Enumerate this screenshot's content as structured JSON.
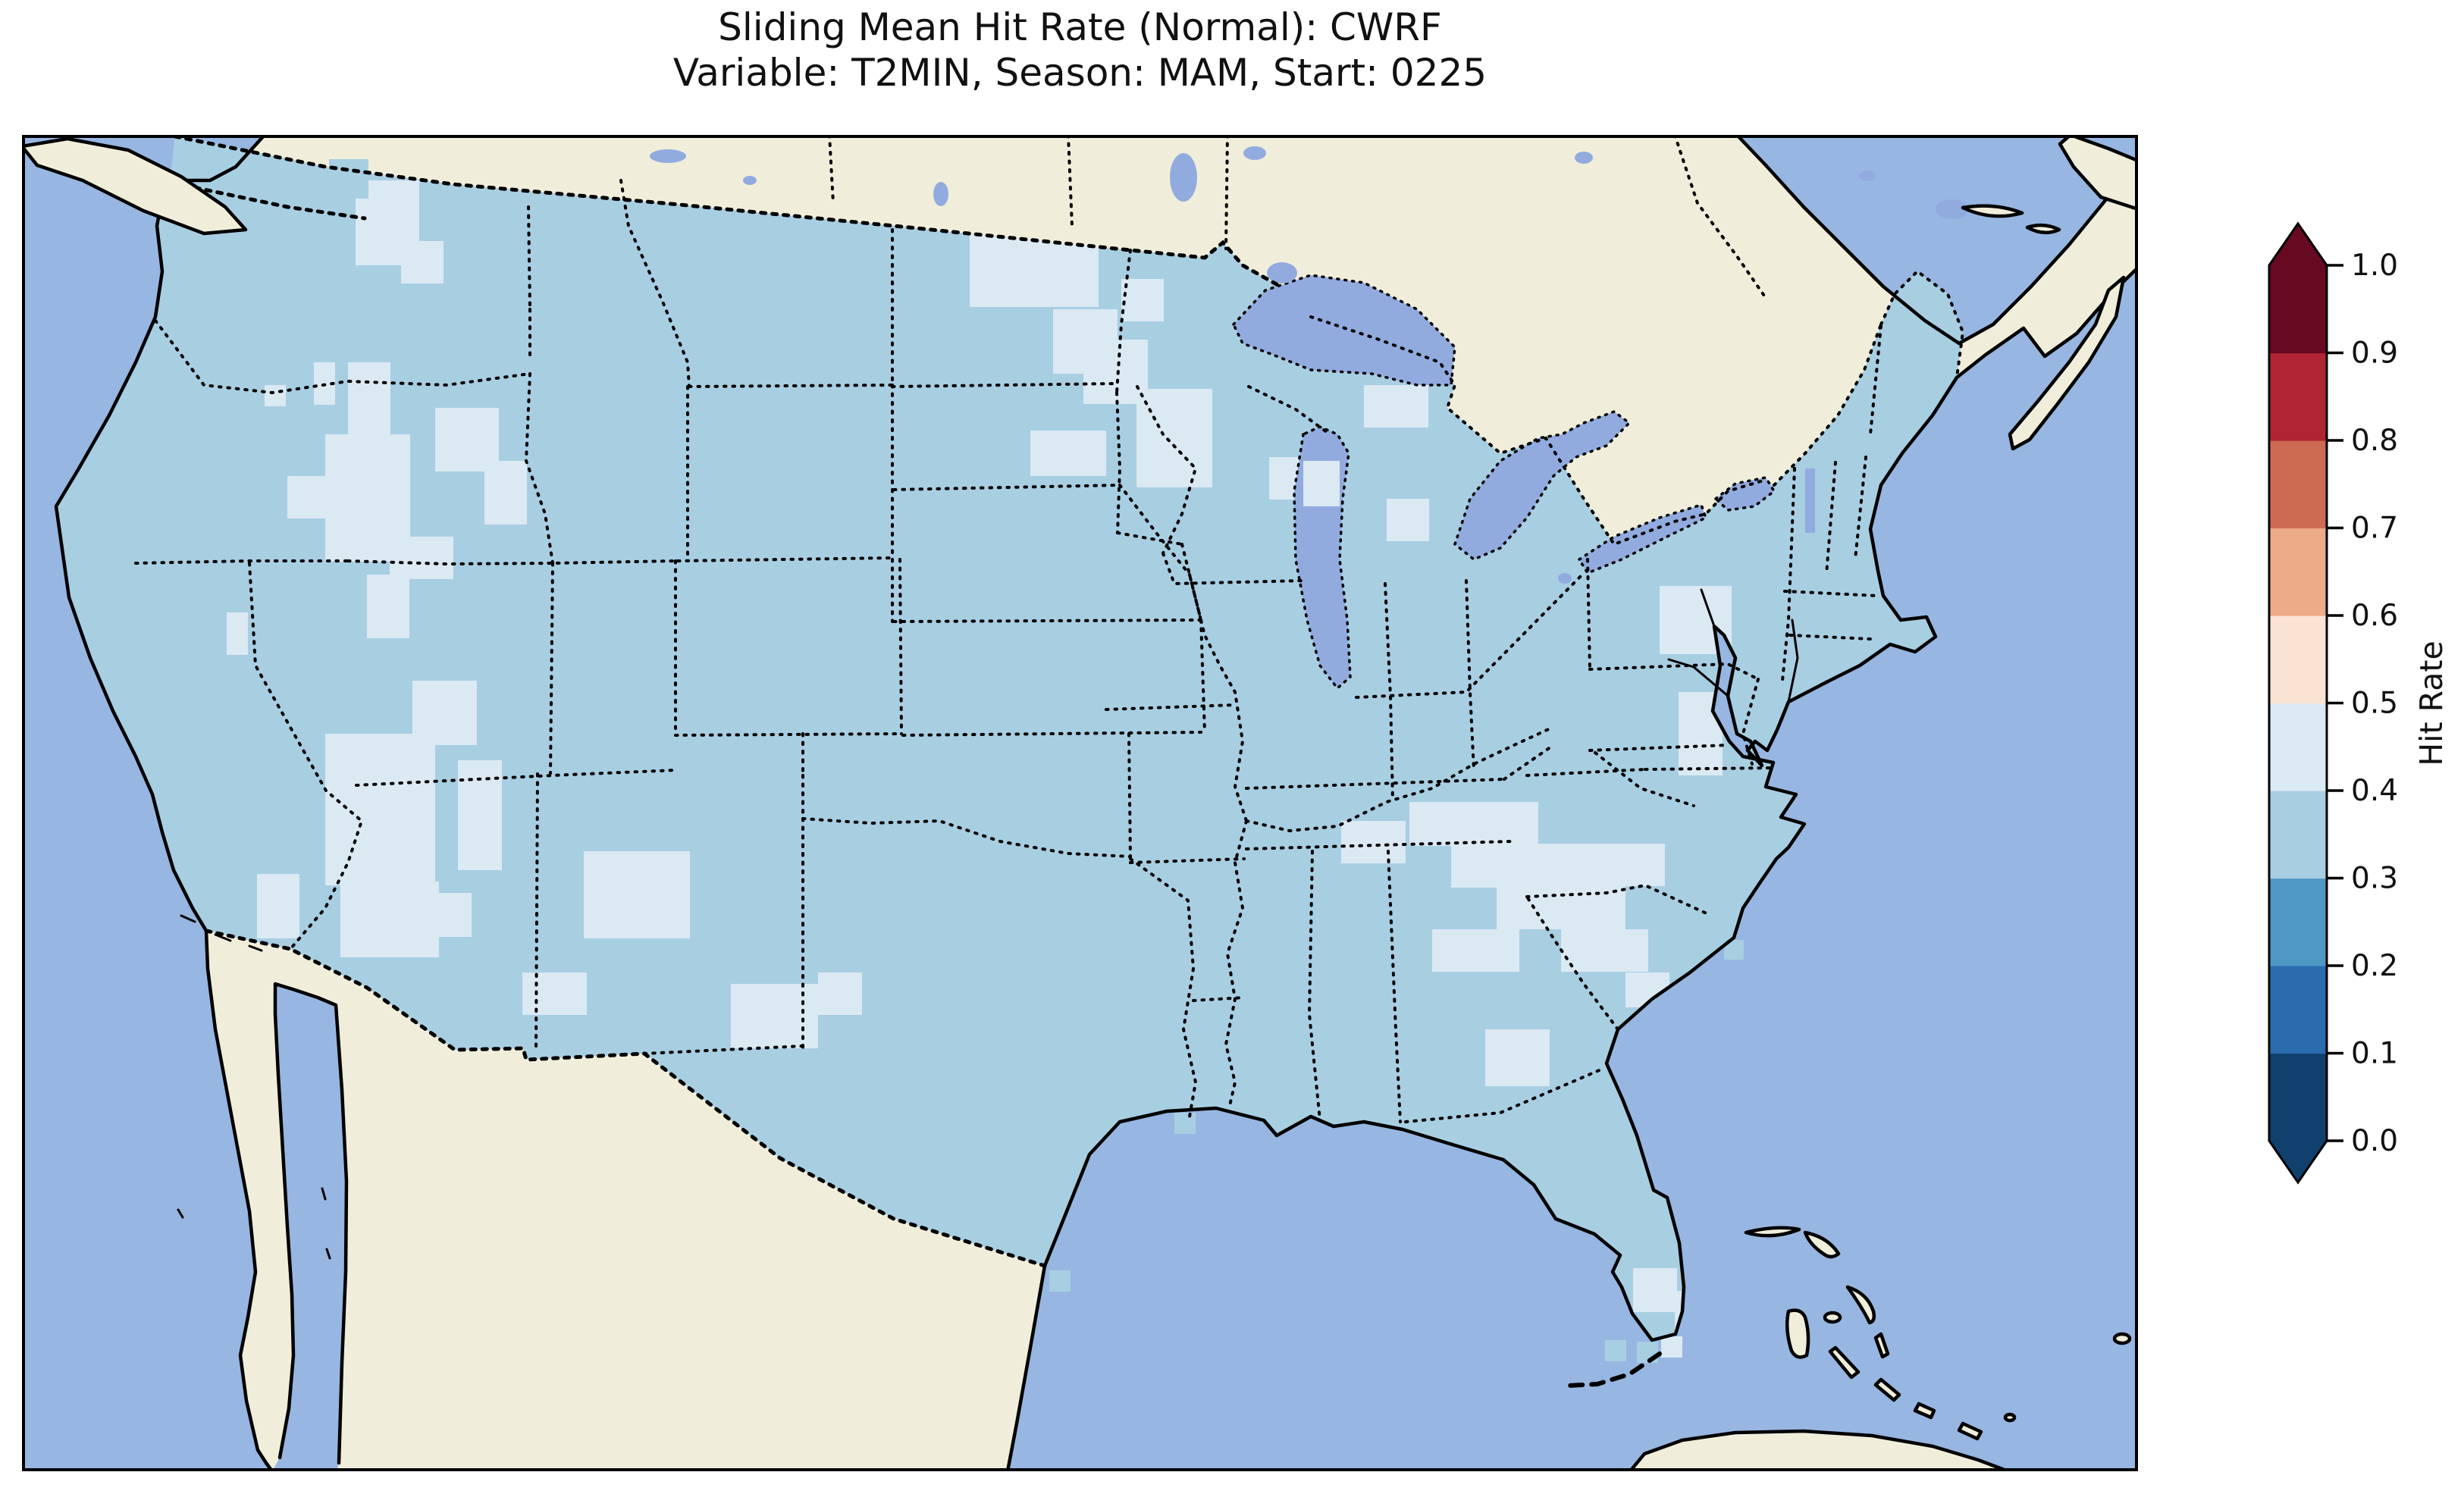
{
  "figure": {
    "title_line1": "Sliding Mean Hit Rate (Normal): CWRF",
    "title_line2": "Variable: T2MIN, Season: MAM, Start: 0225",
    "text_color": "#111111",
    "background_color": "#ffffff"
  },
  "colorbar": {
    "label": "Hit Rate",
    "orientation": "vertical",
    "extend": "both",
    "tick_labels": [
      "0.0",
      "0.1",
      "0.2",
      "0.3",
      "0.4",
      "0.5",
      "0.6",
      "0.7",
      "0.8",
      "0.9",
      "1.0"
    ],
    "bins": [
      {
        "from": 0.0,
        "to": 0.1,
        "color": "#10406e"
      },
      {
        "from": 0.1,
        "to": 0.2,
        "color": "#2a6cad"
      },
      {
        "from": 0.2,
        "to": 0.3,
        "color": "#4f97c5"
      },
      {
        "from": 0.3,
        "to": 0.4,
        "color": "#a8cee2"
      },
      {
        "from": 0.4,
        "to": 0.5,
        "color": "#dbe9f3"
      },
      {
        "from": 0.5,
        "to": 0.6,
        "color": "#fbe3d4"
      },
      {
        "from": 0.6,
        "to": 0.7,
        "color": "#eeab87"
      },
      {
        "from": 0.7,
        "to": 0.8,
        "color": "#cd6a52"
      },
      {
        "from": 0.8,
        "to": 0.9,
        "color": "#b12433"
      },
      {
        "from": 0.9,
        "to": 1.0,
        "color": "#670a21"
      }
    ],
    "extend_over_color": "#670a21",
    "extend_under_color": "#10406e",
    "outline_color": "#000000"
  },
  "map": {
    "ocean_color": "#97b6e1",
    "land_color": "#f0eedb",
    "lake_color": "#92abdf",
    "coastline_color": "#000000",
    "data_cell_primary_color": "#a8cee2",
    "data_cell_secondary_color": "#dbe9f3",
    "political_border_style": "dotted black"
  },
  "chart_data": {
    "type": "heatmap",
    "subtype": "geographic gridded hit-rate map (cartopy-style)",
    "title": "Sliding Mean Hit Rate (Normal): CWRF",
    "subtitle": "Variable: T2MIN, Season: MAM, Start: 0225",
    "model": "CWRF",
    "variable": "T2MIN",
    "season": "MAM",
    "start": "0225",
    "region": "Contiguous United States with surrounding Canada, Mexico, Gulf of Mexico, Atlantic (Bahamas, Cuba, Nova Scotia) context",
    "colorbar_label": "Hit Rate",
    "value_range": [
      0.0,
      1.0
    ],
    "colorbar_ticks": [
      0.0,
      0.1,
      0.2,
      0.3,
      0.4,
      0.5,
      0.6,
      0.7,
      0.8,
      0.9,
      1.0
    ],
    "bin_edges": [
      0.0,
      0.1,
      0.2,
      0.3,
      0.4,
      0.5,
      0.6,
      0.7,
      0.8,
      0.9,
      1.0
    ],
    "bin_colors": [
      "#10406e",
      "#2a6cad",
      "#4f97c5",
      "#a8cee2",
      "#dbe9f3",
      "#fbe3d4",
      "#eeab87",
      "#cd6a52",
      "#b12433",
      "#670a21"
    ],
    "legend_position": "right vertical colorbar with pointed over/under extensions",
    "grid": "off",
    "observed_field": {
      "dominant_bin": "0.3-0.4 (light blue) over most of the CONUS grid",
      "secondary_bin": "0.4-0.5 (very pale blue) scattered patches",
      "regions_with_0.4_to_0.5": [
        "northern Washington and Cascades",
        "central Oregon",
        "Nevada / western Utah / southern Idaho",
        "southeastern California and southwestern Arizona",
        "southern New Mexico",
        "eastern Montana and western North Dakota",
        "northeastern Minnesota and northern Wisconsin",
        "Michigan Upper Peninsula shoreline",
        "central Appalachians (Kentucky, Tennessee, West Virginia, Virginia, western North Carolina)",
        "upstate New York and central Pennsylvania",
        "Georgia / South Carolina border",
        "southern tip of Florida"
      ],
      "bins_below_0.3_or_above_0.5": "not visibly present on the map"
    }
  }
}
